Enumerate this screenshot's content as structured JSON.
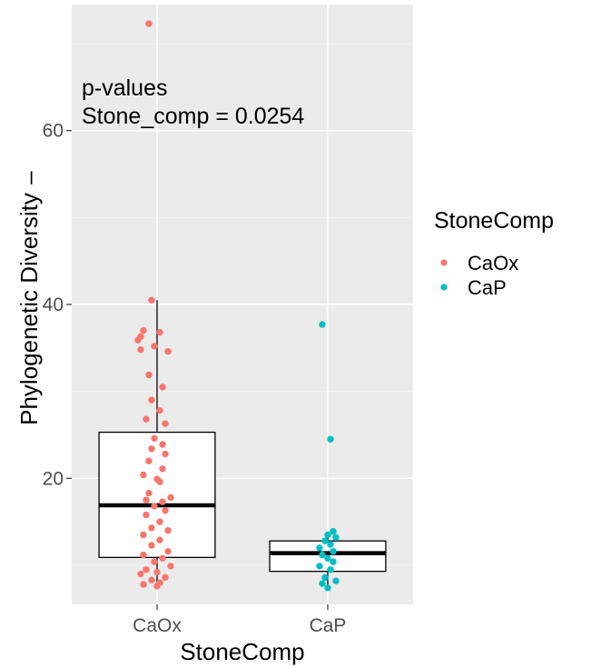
{
  "chart_data": {
    "type": "box+jitter",
    "xlabel": "StoneComp",
    "ylabel": "Phylogenetic Diversity",
    "ylabel_prefix": "–",
    "categories": [
      "CaOx",
      "CaP"
    ],
    "yticks": [
      20,
      40,
      60
    ],
    "ylim": [
      5.5,
      74.5
    ],
    "grid": true,
    "annotation": [
      "p-values",
      "Stone_comp = 0.0254"
    ],
    "legend": {
      "title": "StoneComp",
      "position": "right",
      "entries": [
        {
          "label": "CaOx",
          "color": "#F8766D"
        },
        {
          "label": "CaP",
          "color": "#00BFC4"
        }
      ]
    },
    "boxes": [
      {
        "category": "CaOx",
        "q1": 10.9,
        "median": 16.9,
        "q3": 25.3,
        "whisker_low": 7.6,
        "whisker_high": 40.5
      },
      {
        "category": "CaP",
        "q1": 9.3,
        "median": 11.4,
        "q3": 12.8,
        "whisker_low": 7.4,
        "whisker_high": 13.8
      }
    ],
    "series": [
      {
        "name": "CaOx",
        "color": "#F8766D",
        "points": [
          {
            "j": -0.3,
            "y": 72.3
          },
          {
            "j": -0.2,
            "y": 40.5
          },
          {
            "j": -0.5,
            "y": 37.0
          },
          {
            "j": 0.1,
            "y": 36.8
          },
          {
            "j": -0.6,
            "y": 36.3
          },
          {
            "j": -0.7,
            "y": 35.9
          },
          {
            "j": -0.1,
            "y": 35.2
          },
          {
            "j": -0.6,
            "y": 34.8
          },
          {
            "j": 0.4,
            "y": 34.6
          },
          {
            "j": -0.3,
            "y": 31.9
          },
          {
            "j": 0.2,
            "y": 30.5
          },
          {
            "j": -0.2,
            "y": 29.0
          },
          {
            "j": 0.1,
            "y": 27.8
          },
          {
            "j": -0.4,
            "y": 26.8
          },
          {
            "j": 0.3,
            "y": 26.3
          },
          {
            "j": -0.1,
            "y": 24.6
          },
          {
            "j": 0.2,
            "y": 23.9
          },
          {
            "j": -0.2,
            "y": 23.4
          },
          {
            "j": 0.3,
            "y": 22.8
          },
          {
            "j": -0.3,
            "y": 22.0
          },
          {
            "j": 0.2,
            "y": 21.1
          },
          {
            "j": -0.5,
            "y": 20.4
          },
          {
            "j": 0.0,
            "y": 19.9
          },
          {
            "j": 0.1,
            "y": 19.6
          },
          {
            "j": -0.3,
            "y": 18.3
          },
          {
            "j": 0.5,
            "y": 17.8
          },
          {
            "j": -0.4,
            "y": 17.5
          },
          {
            "j": 0.2,
            "y": 17.3
          },
          {
            "j": -0.1,
            "y": 16.8
          },
          {
            "j": 0.3,
            "y": 16.3
          },
          {
            "j": -0.4,
            "y": 15.8
          },
          {
            "j": 0.1,
            "y": 15.0
          },
          {
            "j": -0.2,
            "y": 14.3
          },
          {
            "j": 0.4,
            "y": 14.0
          },
          {
            "j": -0.5,
            "y": 13.5
          },
          {
            "j": 0.1,
            "y": 12.9
          },
          {
            "j": -0.2,
            "y": 12.3
          },
          {
            "j": 0.4,
            "y": 11.6
          },
          {
            "j": -0.5,
            "y": 11.2
          },
          {
            "j": 0.2,
            "y": 10.8
          },
          {
            "j": -0.1,
            "y": 10.4
          },
          {
            "j": 0.5,
            "y": 9.9
          },
          {
            "j": -0.4,
            "y": 9.5
          },
          {
            "j": 0.0,
            "y": 9.2
          },
          {
            "j": -0.6,
            "y": 9.0
          },
          {
            "j": 0.3,
            "y": 8.6
          },
          {
            "j": -0.2,
            "y": 8.3
          },
          {
            "j": 0.1,
            "y": 8.0
          },
          {
            "j": -0.5,
            "y": 7.8
          },
          {
            "j": 0.0,
            "y": 7.6
          }
        ]
      },
      {
        "name": "CaP",
        "color": "#00BFC4",
        "points": [
          {
            "j": -0.2,
            "y": 37.7
          },
          {
            "j": 0.1,
            "y": 24.5
          },
          {
            "j": 0.2,
            "y": 13.9
          },
          {
            "j": 0.0,
            "y": 13.5
          },
          {
            "j": 0.3,
            "y": 13.2
          },
          {
            "j": -0.1,
            "y": 12.8
          },
          {
            "j": 0.1,
            "y": 12.4
          },
          {
            "j": -0.3,
            "y": 12.0
          },
          {
            "j": 0.2,
            "y": 11.6
          },
          {
            "j": -0.2,
            "y": 11.2
          },
          {
            "j": 0.0,
            "y": 10.8
          },
          {
            "j": 0.2,
            "y": 10.4
          },
          {
            "j": -0.3,
            "y": 9.9
          },
          {
            "j": 0.1,
            "y": 9.5
          },
          {
            "j": -0.1,
            "y": 8.6
          },
          {
            "j": 0.3,
            "y": 8.2
          },
          {
            "j": -0.2,
            "y": 7.9
          },
          {
            "j": 0.0,
            "y": 7.4
          }
        ]
      }
    ]
  }
}
